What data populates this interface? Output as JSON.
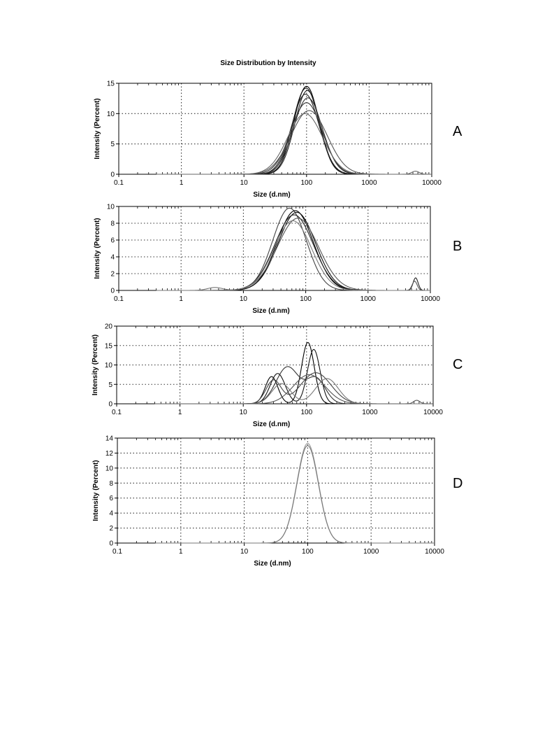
{
  "figure": {
    "title": "Size Distribution by Intensity"
  },
  "chart_data": [
    {
      "type": "line",
      "panel_label": "A",
      "xlabel": "Size (d.nm)",
      "ylabel": "Intensity (Percent)",
      "xscale": "log",
      "xlim": [
        0.1,
        10000
      ],
      "ylim": [
        0,
        15
      ],
      "xticks": [
        "0.1",
        "1",
        "10",
        "100",
        "1000",
        "10000"
      ],
      "yticks": [
        "0",
        "5",
        "10",
        "15"
      ],
      "grid": true,
      "series": [
        {
          "peak": 14.5,
          "center": 100,
          "width": 0.2,
          "color": "#000000"
        },
        {
          "peak": 14.2,
          "center": 98,
          "width": 0.21,
          "color": "#111111"
        },
        {
          "peak": 13.8,
          "center": 103,
          "width": 0.2,
          "color": "#222222"
        },
        {
          "peak": 13.2,
          "center": 96,
          "width": 0.22,
          "color": "#222222"
        },
        {
          "peak": 12.6,
          "center": 105,
          "width": 0.23,
          "color": "#333333"
        },
        {
          "peak": 11.8,
          "center": 100,
          "width": 0.25,
          "color": "#333333"
        },
        {
          "peak": 10.5,
          "center": 110,
          "width": 0.29,
          "color": "#555555"
        },
        {
          "peak": 10.0,
          "center": 95,
          "width": 0.28,
          "color": "#666666",
          "extra": {
            "peak": 0.5,
            "center": 5500,
            "width": 0.06
          }
        }
      ]
    },
    {
      "type": "line",
      "panel_label": "B",
      "xlabel": "Size (d.nm)",
      "ylabel": "Intensity (Percent)",
      "xscale": "log",
      "xlim": [
        0.1,
        10000
      ],
      "ylim": [
        0,
        10
      ],
      "xticks": [
        "0.1",
        "1",
        "10",
        "100",
        "1000",
        "10000"
      ],
      "yticks": [
        "0",
        "2",
        "4",
        "6",
        "8",
        "10"
      ],
      "grid": true,
      "series": [
        {
          "peak": 9.8,
          "center": 55,
          "width": 0.27,
          "color": "#444444"
        },
        {
          "peak": 9.5,
          "center": 68,
          "width": 0.29,
          "color": "#000000"
        },
        {
          "peak": 9.3,
          "center": 72,
          "width": 0.3,
          "color": "#111111"
        },
        {
          "peak": 9.0,
          "center": 65,
          "width": 0.31,
          "color": "#222222",
          "extra": {
            "peak": 1.5,
            "center": 5800,
            "width": 0.04
          }
        },
        {
          "peak": 8.6,
          "center": 75,
          "width": 0.33,
          "color": "#555555",
          "extra": {
            "peak": 1.1,
            "center": 5600,
            "width": 0.04
          }
        },
        {
          "peak": 8.3,
          "center": 62,
          "width": 0.3,
          "color": "#777777",
          "extra": {
            "peak": 0.35,
            "center": 3.5,
            "width": 0.12
          }
        }
      ]
    },
    {
      "type": "line",
      "panel_label": "C",
      "xlabel": "Size (d.nm)",
      "ylabel": "Intensity (Percent)",
      "xscale": "log",
      "xlim": [
        0.1,
        10000
      ],
      "ylim": [
        0,
        20
      ],
      "xticks": [
        "0.1",
        "1",
        "10",
        "100",
        "1000",
        "10000"
      ],
      "yticks": [
        "0",
        "5",
        "10",
        "15",
        "20"
      ],
      "grid": true,
      "series": [
        {
          "peak": 15.8,
          "center": 105,
          "width": 0.1,
          "color": "#000000",
          "extra": {
            "peak": 7.0,
            "center": 28,
            "width": 0.1
          }
        },
        {
          "peak": 14.0,
          "center": 130,
          "width": 0.1,
          "color": "#111111",
          "extra": {
            "peak": 7.8,
            "center": 35,
            "width": 0.12
          }
        },
        {
          "peak": 9.5,
          "center": 50,
          "width": 0.18,
          "color": "#333333",
          "extra": {
            "peak": 6.5,
            "center": 140,
            "width": 0.15
          }
        },
        {
          "peak": 8.0,
          "center": 140,
          "width": 0.24,
          "color": "#444444",
          "extra": {
            "peak": 6.0,
            "center": 30,
            "width": 0.12
          }
        },
        {
          "peak": 6.5,
          "center": 210,
          "width": 0.18,
          "color": "#777777",
          "extra": {
            "peak": 5.2,
            "center": 40,
            "width": 0.15
          }
        },
        {
          "peak": 7.5,
          "center": 110,
          "width": 0.25,
          "color": "#555555",
          "extra": {
            "peak": 0.9,
            "center": 5500,
            "width": 0.05
          }
        }
      ]
    },
    {
      "type": "line",
      "panel_label": "D",
      "xlabel": "Size (d.nm)",
      "ylabel": "Intensity (Percent)",
      "xscale": "log",
      "xlim": [
        0.1,
        10000
      ],
      "ylim": [
        0,
        14
      ],
      "xticks": [
        "0.1",
        "1",
        "10",
        "100",
        "1000",
        "10000"
      ],
      "yticks": [
        "0",
        "2",
        "4",
        "6",
        "8",
        "10",
        "12",
        "14"
      ],
      "grid": true,
      "series": [
        {
          "peak": 13.3,
          "center": 100,
          "width": 0.17,
          "color": "#9a9a9a"
        },
        {
          "peak": 13.0,
          "center": 100,
          "width": 0.17,
          "color": "#777777"
        }
      ]
    }
  ]
}
